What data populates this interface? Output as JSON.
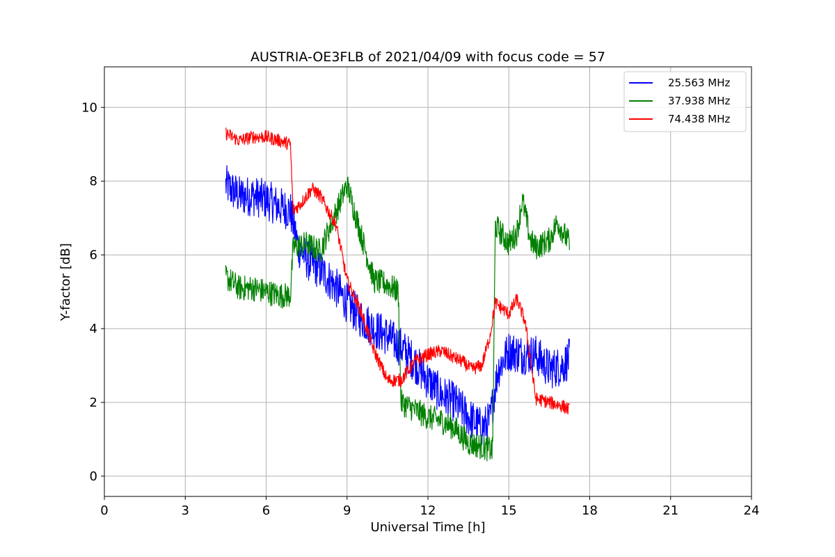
{
  "chart_data": {
    "type": "line",
    "title": "AUSTRIA-OE3FLB of 2021/04/09 with focus code = 57",
    "xlabel": "Universal Time [h]",
    "ylabel": "Y-factor [dB]",
    "xlim": [
      0,
      24
    ],
    "ylim": [
      -0.55,
      11.1
    ],
    "xticks": [
      0,
      3,
      6,
      9,
      12,
      15,
      18,
      21,
      24
    ],
    "yticks": [
      0,
      2,
      4,
      6,
      8,
      10
    ],
    "grid": true,
    "legend_position": "top-right",
    "series": [
      {
        "name": "25.563 MHz",
        "color": "#0000ff",
        "noise": 0.55,
        "x": [
          4.5,
          5.0,
          5.5,
          6.0,
          6.5,
          6.9,
          7.2,
          7.6,
          8.0,
          8.5,
          9.0,
          9.5,
          10.0,
          10.5,
          11.0,
          11.5,
          12.0,
          12.5,
          13.0,
          13.5,
          14.0,
          14.3,
          14.6,
          15.0,
          15.5,
          16.0,
          16.5,
          17.0,
          17.25
        ],
        "y": [
          7.9,
          7.6,
          7.6,
          7.5,
          7.3,
          7.2,
          6.2,
          5.8,
          5.6,
          5.2,
          4.7,
          4.3,
          4.0,
          3.8,
          3.5,
          3.1,
          2.6,
          2.2,
          2.0,
          1.6,
          1.3,
          1.5,
          2.9,
          3.4,
          3.3,
          3.3,
          2.9,
          3.0,
          3.2
        ]
      },
      {
        "name": "37.938 MHz",
        "color": "#008000",
        "noise": 0.35,
        "x": [
          4.5,
          5.0,
          5.5,
          6.0,
          6.5,
          6.9,
          7.0,
          7.5,
          8.0,
          8.5,
          9.0,
          9.5,
          10.0,
          10.5,
          10.9,
          11.0,
          11.5,
          12.0,
          12.5,
          13.0,
          13.5,
          14.0,
          14.4,
          14.5,
          15.0,
          15.3,
          15.5,
          15.8,
          16.0,
          16.5,
          16.8,
          17.25
        ],
        "y": [
          5.4,
          5.1,
          5.1,
          5.0,
          4.9,
          4.9,
          6.2,
          6.3,
          6.1,
          7.0,
          7.9,
          6.6,
          5.3,
          5.2,
          5.0,
          2.0,
          1.8,
          1.6,
          1.5,
          1.3,
          0.9,
          0.8,
          0.7,
          6.8,
          6.3,
          6.6,
          7.5,
          6.4,
          6.2,
          6.4,
          6.9,
          6.3
        ]
      },
      {
        "name": "74.438 MHz",
        "color": "#ff0000",
        "noise": 0.18,
        "x": [
          4.5,
          5.0,
          5.5,
          6.0,
          6.5,
          6.9,
          7.0,
          7.3,
          7.7,
          8.0,
          8.3,
          8.6,
          9.0,
          9.5,
          10.0,
          10.5,
          11.0,
          11.5,
          12.0,
          12.5,
          13.0,
          13.3,
          13.6,
          14.0,
          14.3,
          14.5,
          15.0,
          15.3,
          15.6,
          16.0,
          16.5,
          17.0,
          17.25
        ],
        "y": [
          9.3,
          9.1,
          9.2,
          9.2,
          9.1,
          9.0,
          7.2,
          7.4,
          7.8,
          7.6,
          7.2,
          6.8,
          5.3,
          4.5,
          3.4,
          2.6,
          2.6,
          3.1,
          3.3,
          3.4,
          3.2,
          3.1,
          2.9,
          3.0,
          3.8,
          4.7,
          4.4,
          4.8,
          4.2,
          2.1,
          2.0,
          1.9,
          1.8
        ]
      }
    ]
  }
}
